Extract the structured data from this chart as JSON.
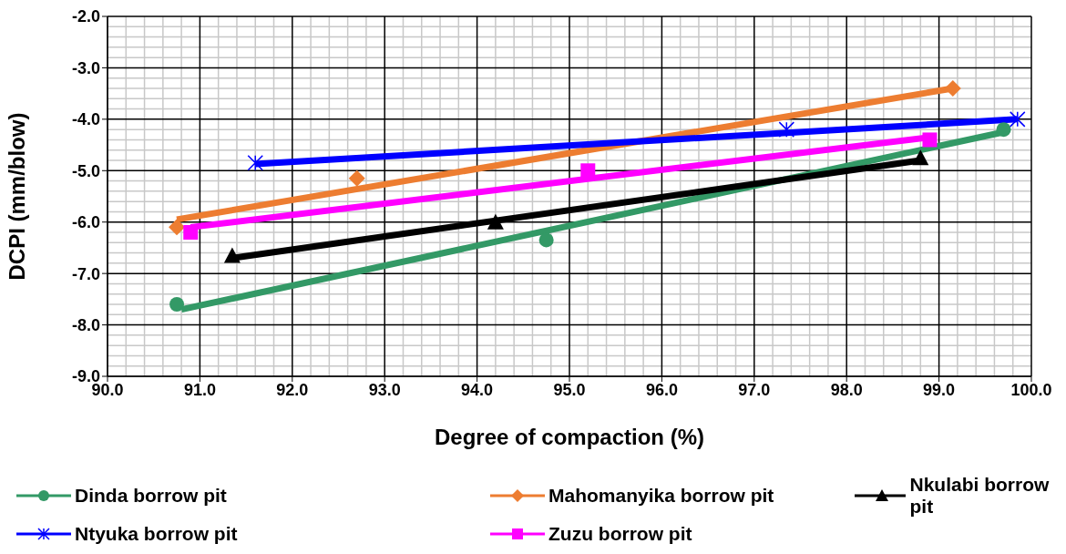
{
  "chart_data": {
    "type": "scatter",
    "xlabel": "Degree of compaction (%)",
    "ylabel": "DCPI (mm/blow)",
    "xlim": [
      90,
      100
    ],
    "ylim": [
      -9,
      -2
    ],
    "xticks": [
      {
        "value": 90,
        "label": "90.0"
      },
      {
        "value": 91,
        "label": "91.0"
      },
      {
        "value": 92,
        "label": "92.0"
      },
      {
        "value": 93,
        "label": "93.0"
      },
      {
        "value": 94,
        "label": "94.0"
      },
      {
        "value": 95,
        "label": "95.0"
      },
      {
        "value": 96,
        "label": "96.0"
      },
      {
        "value": 97,
        "label": "97.0"
      },
      {
        "value": 98,
        "label": "98.0"
      },
      {
        "value": 99,
        "label": "99.0"
      },
      {
        "value": 100,
        "label": "100.0"
      }
    ],
    "yticks": [
      {
        "value": -9,
        "label": "-9.0"
      },
      {
        "value": -8,
        "label": "-8.0"
      },
      {
        "value": -7,
        "label": "-7.0"
      },
      {
        "value": -6,
        "label": "-6.0"
      },
      {
        "value": -5,
        "label": "-5.0"
      },
      {
        "value": -4,
        "label": "-4.0"
      },
      {
        "value": -3,
        "label": "-3.0"
      },
      {
        "value": -2,
        "label": "-2.0"
      }
    ],
    "grid": true,
    "legend": "bottom",
    "series": [
      {
        "name": "Dinda borrow pit",
        "color": "#339966",
        "marker": "circle",
        "x": [
          90.75,
          94.75,
          99.7
        ],
        "values": [
          -7.6,
          -6.35,
          -4.2
        ]
      },
      {
        "name": "Mahomanyika borrow pit",
        "color": "#ed7d31",
        "marker": "diamond",
        "x": [
          90.75,
          92.7,
          99.15
        ],
        "values": [
          -6.1,
          -5.15,
          -3.4
        ]
      },
      {
        "name": "Nkulabi borrow pit",
        "color": "#000000",
        "marker": "triangle",
        "x": [
          91.35,
          94.2,
          98.8
        ],
        "values": [
          -6.65,
          -6.0,
          -4.75
        ]
      },
      {
        "name": "Ntyuka borrow pit",
        "color": "#0000ff",
        "marker": "cross",
        "x": [
          91.6,
          97.35,
          99.85
        ],
        "values": [
          -4.85,
          -4.2,
          -4.0
        ]
      },
      {
        "name": "Zuzu borrow pit",
        "color": "#ff00ff",
        "marker": "square",
        "x": [
          90.9,
          95.2,
          98.9
        ],
        "values": [
          -6.2,
          -5.0,
          -4.4
        ]
      },
      {
        "type": "line",
        "color": "#339966",
        "x": [
          90.8,
          99.7
        ],
        "values": [
          -7.7,
          -4.25
        ]
      },
      {
        "type": "line",
        "color": "#ed7d31",
        "x": [
          90.75,
          99.15
        ],
        "values": [
          -5.95,
          -3.4
        ]
      },
      {
        "type": "line",
        "color": "#000000",
        "x": [
          91.35,
          98.8
        ],
        "values": [
          -6.7,
          -4.8
        ]
      },
      {
        "type": "line",
        "color": "#0000ff",
        "x": [
          91.6,
          99.85
        ],
        "values": [
          -4.87,
          -4.0
        ]
      },
      {
        "type": "line",
        "color": "#ff00ff",
        "x": [
          90.9,
          98.9
        ],
        "values": [
          -6.1,
          -4.35
        ]
      }
    ]
  }
}
